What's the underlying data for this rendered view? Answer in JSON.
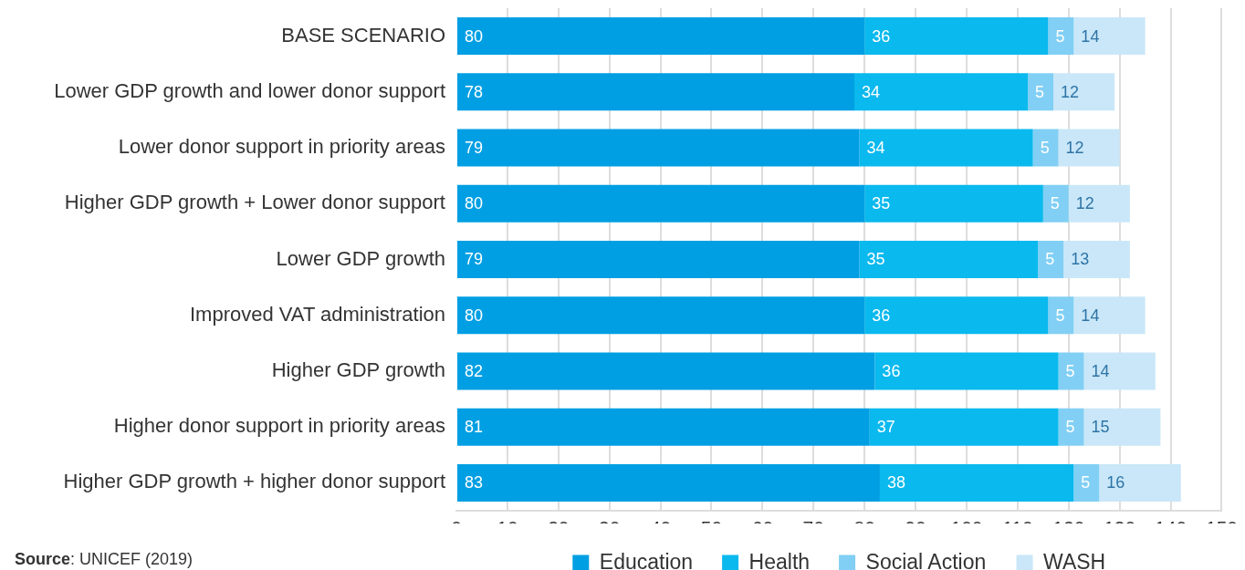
{
  "chart_data": {
    "type": "bar",
    "orientation": "horizontal",
    "stacked": true,
    "categories": [
      "BASE SCENARIO",
      "Lower GDP growth and lower donor support",
      "Lower donor support in priority areas",
      "Higher GDP growth + Lower donor support",
      "Lower GDP growth",
      "Improved VAT administration",
      "Higher GDP growth",
      "Higher donor support in priority areas",
      "Higher GDP growth + higher donor support"
    ],
    "series": [
      {
        "name": "Education",
        "color": "#009fe3",
        "values": [
          80,
          78,
          79,
          80,
          79,
          80,
          82,
          81,
          83
        ]
      },
      {
        "name": "Health",
        "color": "#0ab9ee",
        "values": [
          36,
          34,
          34,
          35,
          35,
          36,
          36,
          37,
          38
        ]
      },
      {
        "name": "Social Action",
        "color": "#81cff4",
        "values": [
          5,
          5,
          5,
          5,
          5,
          5,
          5,
          5,
          5
        ]
      },
      {
        "name": "WASH",
        "color": "#c9e7f8",
        "values": [
          14,
          12,
          12,
          12,
          13,
          14,
          14,
          15,
          16
        ]
      }
    ],
    "xlim": [
      0,
      150
    ],
    "xticks": [
      0,
      10,
      20,
      30,
      40,
      50,
      60,
      70,
      80,
      90,
      100,
      110,
      120,
      130,
      140,
      150
    ],
    "grid": "x",
    "legend": "bottom",
    "data_labels": true,
    "annotations": [
      "Source: UNICEF (2019)"
    ]
  }
}
